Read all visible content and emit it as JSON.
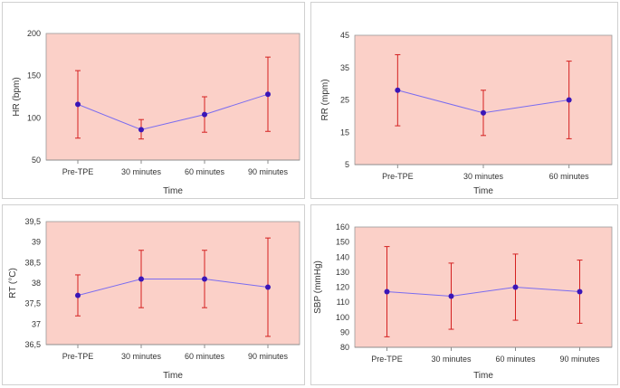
{
  "colors": {
    "plot_bg": "#fbd0c8",
    "line": "#7a6cf0",
    "marker": "#3a16b8",
    "error_bar": "#d42020",
    "axis": "#8c8c8c",
    "frame": "#9a9a9a"
  },
  "chart_data": [
    {
      "type": "line",
      "title": "",
      "xlabel": "Time",
      "ylabel": "HR (bpm)",
      "categories": [
        "Pre-TPE",
        "30 minutes",
        "60 minutes",
        "90 minutes"
      ],
      "values": [
        116,
        86,
        104,
        128
      ],
      "error_low": [
        76,
        75,
        83,
        84
      ],
      "error_high": [
        156,
        98,
        125,
        172
      ],
      "ylim": [
        50,
        200
      ],
      "yticks": [
        50,
        100,
        150,
        200
      ],
      "ytick_labels": [
        "50",
        "100",
        "150",
        "200"
      ]
    },
    {
      "type": "line",
      "title": "",
      "xlabel": "Time",
      "ylabel": "RR (mpm)",
      "categories": [
        "Pre-TPE",
        "30 minutes",
        "60 minutes"
      ],
      "values": [
        28,
        21,
        25
      ],
      "error_low": [
        17,
        14,
        13
      ],
      "error_high": [
        39,
        28,
        37
      ],
      "ylim": [
        5,
        45
      ],
      "yticks": [
        5,
        15,
        25,
        35,
        45
      ],
      "ytick_labels": [
        "5",
        "15",
        "25",
        "35",
        "45"
      ]
    },
    {
      "type": "line",
      "title": "",
      "xlabel": "Time",
      "ylabel": "RT (°C)",
      "categories": [
        "Pre-TPE",
        "30 minutes",
        "60 minutes",
        "90 minutes"
      ],
      "values": [
        37.7,
        38.1,
        38.1,
        37.9
      ],
      "error_low": [
        37.2,
        37.4,
        37.4,
        36.7
      ],
      "error_high": [
        38.2,
        38.8,
        38.8,
        39.1
      ],
      "ylim": [
        36.5,
        39.5
      ],
      "yticks": [
        36.5,
        37,
        37.5,
        38,
        38.5,
        39,
        39.5
      ],
      "ytick_labels": [
        "36,5",
        "37",
        "37,5",
        "38",
        "38,5",
        "39",
        "39,5"
      ]
    },
    {
      "type": "line",
      "title": "",
      "xlabel": "Time",
      "ylabel": "SBP (mmHg)",
      "categories": [
        "Pre-TPE",
        "30 minutes",
        "60 minutes",
        "90 minutes"
      ],
      "values": [
        117,
        114,
        120,
        117
      ],
      "error_low": [
        87,
        92,
        98,
        96
      ],
      "error_high": [
        147,
        136,
        142,
        138
      ],
      "ylim": [
        80,
        160
      ],
      "yticks": [
        80,
        90,
        100,
        110,
        120,
        130,
        140,
        150,
        160
      ],
      "ytick_labels": [
        "80",
        "90",
        "100",
        "110",
        "120",
        "130",
        "140",
        "150",
        "160"
      ]
    }
  ]
}
